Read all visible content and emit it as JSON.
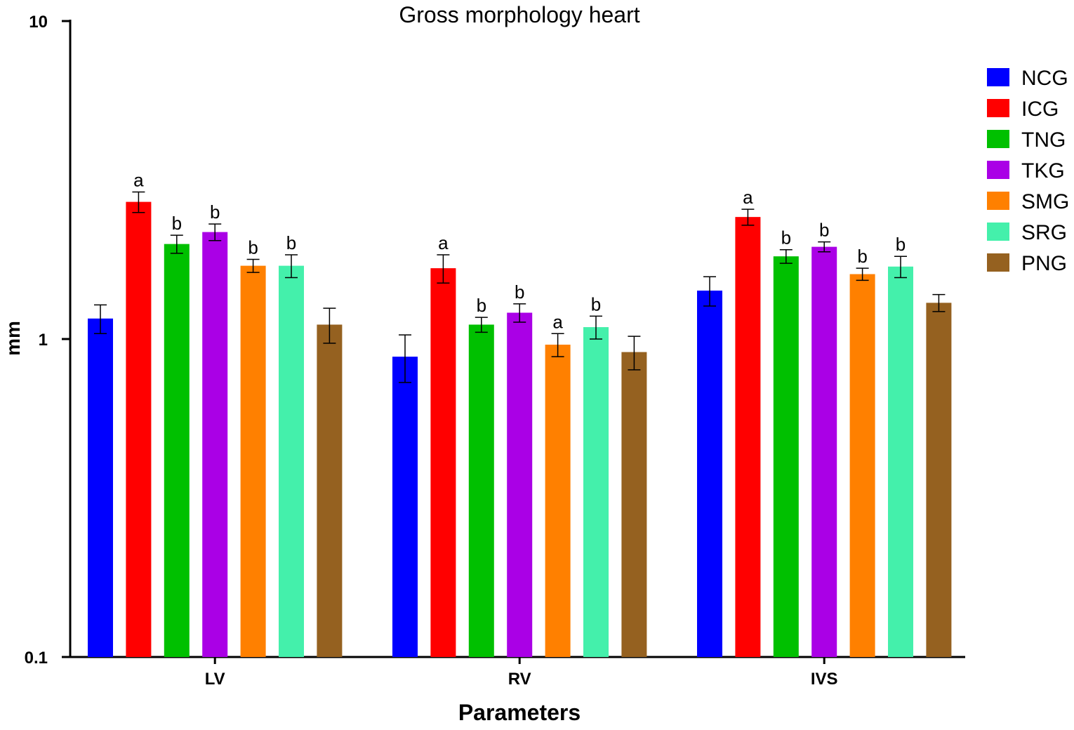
{
  "chart_data": {
    "type": "bar",
    "title": "Gross morphology heart",
    "xlabel": "Parameters",
    "ylabel": "mm",
    "yscale": "log",
    "ylim": [
      0.1,
      10
    ],
    "yticks": [
      {
        "value": 0.1,
        "label": "0.1"
      },
      {
        "value": 1,
        "label": "1"
      },
      {
        "value": 10,
        "label": "10"
      }
    ],
    "grid": false,
    "legend_position": "right",
    "categories": [
      "LV",
      "RV",
      "IVS"
    ],
    "series": [
      {
        "name": "NCG",
        "color": "#0000ff",
        "values": [
          1.16,
          0.88,
          1.42
        ],
        "errors": [
          0.12,
          0.15,
          0.15
        ],
        "labels": [
          "",
          "",
          ""
        ]
      },
      {
        "name": "ICG",
        "color": "#ff0000",
        "values": [
          2.7,
          1.67,
          2.42
        ],
        "errors": [
          0.2,
          0.17,
          0.14
        ],
        "labels": [
          "a",
          "a",
          "a"
        ]
      },
      {
        "name": "TNG",
        "color": "#00c000",
        "values": [
          1.99,
          1.11,
          1.82
        ],
        "errors": [
          0.13,
          0.06,
          0.09
        ],
        "labels": [
          "b",
          "b",
          "b"
        ]
      },
      {
        "name": "TKG",
        "color": "#aa00e6",
        "values": [
          2.17,
          1.21,
          1.95
        ],
        "errors": [
          0.13,
          0.08,
          0.07
        ],
        "labels": [
          "b",
          "b",
          "b"
        ]
      },
      {
        "name": "SMG",
        "color": "#ff8000",
        "values": [
          1.7,
          0.96,
          1.6
        ],
        "errors": [
          0.08,
          0.08,
          0.07
        ],
        "labels": [
          "b",
          "a",
          "b"
        ]
      },
      {
        "name": "SRG",
        "color": "#44f0ab",
        "values": [
          1.7,
          1.09,
          1.69
        ],
        "errors": [
          0.14,
          0.09,
          0.13
        ],
        "labels": [
          "b",
          "b",
          "b"
        ]
      },
      {
        "name": "PNG",
        "color": "#956120",
        "values": [
          1.11,
          0.91,
          1.3
        ],
        "errors": [
          0.14,
          0.11,
          0.08
        ],
        "labels": [
          "",
          "",
          ""
        ]
      }
    ]
  }
}
